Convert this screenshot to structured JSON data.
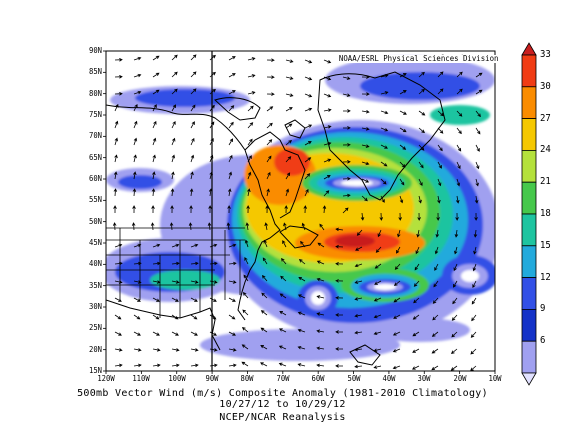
{
  "credit": "NOAA/ESRL Physical Sciences Division",
  "caption": {
    "line1": "500mb Vector Wind (m/s) Composite Anomaly (1981-2010 Climatology)",
    "line2": "10/27/12  to 10/29/12",
    "line3": "NCEP/NCAR Reanalysis"
  },
  "lat_labels": [
    "90N",
    "85N",
    "80N",
    "75N",
    "70N",
    "65N",
    "60N",
    "55N",
    "50N",
    "45N",
    "40N",
    "35N",
    "30N",
    "25N",
    "20N",
    "15N"
  ],
  "lon_labels": [
    "120W",
    "110W",
    "100W",
    "90W",
    "80W",
    "70W",
    "60W",
    "50W",
    "40W",
    "30W",
    "20W",
    "10W"
  ],
  "colorbar": {
    "labels": [
      "33",
      "30",
      "27",
      "24",
      "21",
      "18",
      "15",
      "12",
      "9",
      "6"
    ],
    "colors": [
      "#c81e1e",
      "#f03c14",
      "#fa8c00",
      "#f5c800",
      "#b4e13c",
      "#46c84b",
      "#1ec4a0",
      "#23aadc",
      "#3250e6",
      "#1432c8",
      "#a0a0f0",
      "#e1e1ff"
    ]
  },
  "map_data": {
    "variable": "500mb vector wind anomaly magnitude",
    "units": "m/s",
    "lat_range": [
      "15N",
      "90N"
    ],
    "lon_range": [
      "120W",
      "10W"
    ],
    "features": [
      {
        "name": "jet max northeast of Newfoundland",
        "lat": 45,
        "lon": -55,
        "value": 33
      },
      {
        "name": "jet max over Baffin Bay / Labrador",
        "lat": 64,
        "lon": -68,
        "value": 30
      },
      {
        "name": "low anomaly south of Greenland",
        "lat": 60,
        "lon": -45,
        "value": 6
      },
      {
        "name": "low anomaly central Atlantic",
        "lat": 36,
        "lon": -42,
        "value": 6
      },
      {
        "name": "low anomaly off US east coast",
        "lat": 32,
        "lon": -63,
        "value": 6
      }
    ]
  }
}
